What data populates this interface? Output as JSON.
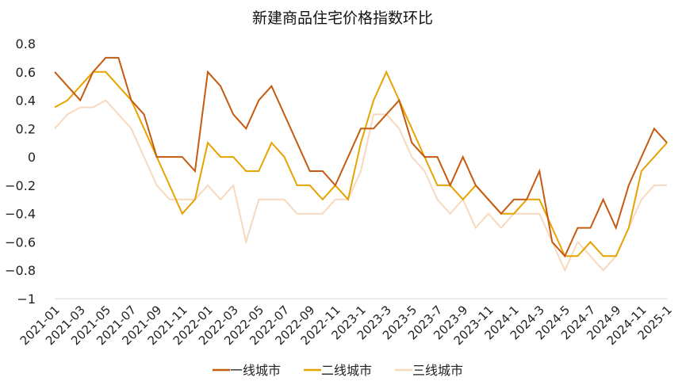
{
  "chart_data": {
    "type": "line",
    "title": "新建商品住宅价格指数环比",
    "xlabel": "",
    "ylabel": "",
    "ylim": [
      -1,
      0.8
    ],
    "yticks": [
      0.8,
      0.6,
      0.4,
      0.2,
      0,
      -0.2,
      -0.4,
      -0.6,
      -0.8,
      -1
    ],
    "ytick_labels": [
      "0.8",
      "0.6",
      "0.4",
      "0.2",
      "0",
      "−0.2",
      "−0.4",
      "−0.6",
      "−0.8",
      "−1"
    ],
    "grid": false,
    "legend_position": "bottom",
    "x": [
      "2021-01",
      "2021-02",
      "2021-03",
      "2021-04",
      "2021-05",
      "2021-06",
      "2021-07",
      "2021-08",
      "2021-09",
      "2021-10",
      "2021-11",
      "2021-12",
      "2022-01",
      "2022-02",
      "2022-03",
      "2022-04",
      "2022-05",
      "2022-06",
      "2022-07",
      "2022-08",
      "2022-09",
      "2022-10",
      "2022-11",
      "2022-12",
      "2023-1",
      "2023-2",
      "2023-3",
      "2023-4",
      "2023-5",
      "2023-6",
      "2023-7",
      "2023-8",
      "2023-9",
      "2023-10",
      "2023-11",
      "2023-12",
      "2024-1",
      "2024-2",
      "2024-3",
      "2024-4",
      "2024-5",
      "2024-6",
      "2024-7",
      "2024-8",
      "2024-9",
      "2024-10",
      "2024-11",
      "2024-12",
      "2025-1"
    ],
    "tick_labels": [
      "2021-01",
      "2021-03",
      "2021-05",
      "2021-07",
      "2021-09",
      "2021-11",
      "2022-01",
      "2022-03",
      "2022-05",
      "2022-07",
      "2022-09",
      "2022-11",
      "2023-1",
      "2023-3",
      "2023-5",
      "2023-7",
      "2023-9",
      "2023-11",
      "2024-1",
      "2024-3",
      "2024-5",
      "2024-7",
      "2024-9",
      "2024-11",
      "2025-1"
    ],
    "series": [
      {
        "name": "一线城市",
        "color": "#C55A11",
        "values": [
          0.6,
          0.5,
          0.4,
          0.6,
          0.7,
          0.7,
          0.4,
          0.3,
          0,
          0,
          0,
          -0.1,
          0.6,
          0.5,
          0.3,
          0.2,
          0.4,
          0.5,
          0.3,
          0.1,
          -0.1,
          -0.1,
          -0.2,
          0,
          0.2,
          0.2,
          0.3,
          0.4,
          0.1,
          0,
          0,
          -0.2,
          0,
          -0.2,
          -0.3,
          -0.4,
          -0.3,
          -0.3,
          -0.1,
          -0.6,
          -0.7,
          -0.5,
          -0.5,
          -0.3,
          -0.5,
          -0.2,
          0,
          0.2,
          0.1
        ]
      },
      {
        "name": "二线城市",
        "color": "#E7A300",
        "values": [
          0.35,
          0.4,
          0.5,
          0.6,
          0.6,
          0.5,
          0.4,
          0.2,
          0,
          -0.2,
          -0.4,
          -0.3,
          0.1,
          0,
          0,
          -0.1,
          -0.1,
          0.1,
          0,
          -0.2,
          -0.2,
          -0.3,
          -0.2,
          -0.3,
          0.1,
          0.4,
          0.6,
          0.4,
          0.2,
          0,
          -0.2,
          -0.2,
          -0.3,
          -0.2,
          -0.3,
          -0.4,
          -0.4,
          -0.3,
          -0.3,
          -0.5,
          -0.7,
          -0.7,
          -0.6,
          -0.7,
          -0.7,
          -0.5,
          -0.1,
          0,
          0.1
        ]
      },
      {
        "name": "三线城市",
        "color": "#F8D9BE",
        "values": [
          0.2,
          0.3,
          0.35,
          0.35,
          0.4,
          0.3,
          0.2,
          0,
          -0.2,
          -0.3,
          -0.3,
          -0.3,
          -0.2,
          -0.3,
          -0.2,
          -0.6,
          -0.3,
          -0.3,
          -0.3,
          -0.4,
          -0.4,
          -0.4,
          -0.3,
          -0.3,
          -0.1,
          0.3,
          0.3,
          0.2,
          0,
          -0.1,
          -0.3,
          -0.4,
          -0.3,
          -0.5,
          -0.4,
          -0.5,
          -0.4,
          -0.4,
          -0.4,
          -0.6,
          -0.8,
          -0.6,
          -0.7,
          -0.8,
          -0.7,
          -0.5,
          -0.3,
          -0.2,
          -0.2
        ]
      }
    ]
  }
}
